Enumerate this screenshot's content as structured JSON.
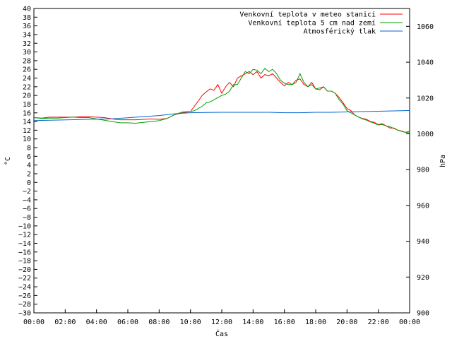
{
  "chart_data": {
    "type": "line",
    "xlabel": "Čas",
    "ylabel": "°C",
    "y2label": "hPa",
    "xlim": [
      0,
      24
    ],
    "ylim": [
      -30,
      40
    ],
    "y2lim": [
      900,
      1070
    ],
    "xticks": [
      "00:00",
      "02:00",
      "04:00",
      "06:00",
      "08:00",
      "10:00",
      "12:00",
      "14:00",
      "16:00",
      "18:00",
      "20:00",
      "22:00",
      "00:00"
    ],
    "y2ticks": [
      900,
      920,
      940,
      960,
      980,
      1000,
      1020,
      1040,
      1060
    ],
    "grid": false,
    "legend_position": "top-right",
    "series": [
      {
        "name": "Venkovní teplota v meteo stanici",
        "color": "#ff0000",
        "axis": "left",
        "x": [
          0,
          0.5,
          1,
          1.5,
          2,
          2.5,
          3,
          3.5,
          4,
          4.5,
          5,
          5.5,
          6,
          6.5,
          7,
          7.5,
          8,
          8.5,
          9,
          9.5,
          10,
          10.25,
          10.5,
          10.75,
          11,
          11.25,
          11.5,
          11.75,
          12,
          12.25,
          12.5,
          12.75,
          13,
          13.25,
          13.5,
          13.75,
          14,
          14.25,
          14.5,
          14.75,
          15,
          15.25,
          15.5,
          15.75,
          16,
          16.25,
          16.5,
          16.75,
          17,
          17.25,
          17.5,
          17.75,
          18,
          18.25,
          18.5,
          18.75,
          19,
          19.25,
          19.5,
          19.75,
          20,
          20.25,
          20.5,
          20.75,
          21,
          21.25,
          21.5,
          21.75,
          22,
          22.25,
          22.5,
          22.75,
          23,
          23.25,
          23.5,
          23.75,
          24
        ],
        "y": [
          14.9,
          14.8,
          15.0,
          15.0,
          15.0,
          15.0,
          15.1,
          15.1,
          15.0,
          14.9,
          14.6,
          14.4,
          14.4,
          14.4,
          14.5,
          14.6,
          14.5,
          14.7,
          15.6,
          16.0,
          16.3,
          17.5,
          18.7,
          20.0,
          20.8,
          21.5,
          21.2,
          22.5,
          20.5,
          22.0,
          23.0,
          22.0,
          24.0,
          24.5,
          25.0,
          25.5,
          24.8,
          25.5,
          24.0,
          24.8,
          24.5,
          25.0,
          24.0,
          23.0,
          22.2,
          23.0,
          22.5,
          23.5,
          23.8,
          22.5,
          22.0,
          23.0,
          21.5,
          21.3,
          22.0,
          21.0,
          21.0,
          20.5,
          19.5,
          18.3,
          17.0,
          16.5,
          15.5,
          15.0,
          14.7,
          14.5,
          14.0,
          13.8,
          13.3,
          13.5,
          13.0,
          12.5,
          12.5,
          12.0,
          11.8,
          11.5,
          11.8
        ]
      },
      {
        "name": "Venkovní teplota 5 cm nad zemí",
        "color": "#00a000",
        "axis": "left",
        "x": [
          0,
          0.5,
          1,
          1.5,
          2,
          2.5,
          3,
          3.5,
          4,
          4.5,
          5,
          5.5,
          6,
          6.5,
          7,
          7.5,
          8,
          8.5,
          9,
          9.5,
          10,
          10.25,
          10.5,
          10.75,
          11,
          11.25,
          11.5,
          11.75,
          12,
          12.25,
          12.5,
          12.75,
          13,
          13.25,
          13.5,
          13.75,
          14,
          14.25,
          14.5,
          14.75,
          15,
          15.25,
          15.5,
          15.75,
          16,
          16.25,
          16.5,
          16.75,
          17,
          17.25,
          17.5,
          17.75,
          18,
          18.25,
          18.5,
          18.75,
          19,
          19.25,
          19.5,
          19.75,
          20,
          20.25,
          20.5,
          20.75,
          21,
          21.25,
          21.5,
          21.75,
          22,
          22.25,
          22.5,
          22.75,
          23,
          23.25,
          23.5,
          23.75,
          24
        ],
        "y": [
          14.9,
          14.7,
          14.8,
          14.8,
          14.9,
          15.0,
          14.9,
          14.9,
          14.6,
          14.3,
          14.0,
          13.7,
          13.7,
          13.6,
          13.8,
          14.0,
          14.2,
          14.7,
          15.6,
          16.2,
          16.3,
          16.5,
          17.0,
          17.5,
          18.3,
          18.5,
          19.0,
          19.5,
          20.0,
          20.3,
          21.0,
          22.5,
          22.5,
          24.0,
          25.5,
          25.0,
          26.0,
          25.8,
          25.0,
          26.2,
          25.5,
          26.0,
          25.0,
          23.5,
          22.8,
          22.5,
          22.5,
          23.0,
          25.0,
          23.0,
          22.0,
          22.5,
          21.5,
          21.7,
          22.0,
          21.0,
          21.0,
          20.5,
          19.0,
          18.0,
          16.5,
          16.0,
          15.5,
          15.0,
          14.6,
          14.3,
          13.9,
          13.6,
          13.2,
          13.3,
          13.0,
          12.8,
          12.4,
          12.0,
          11.7,
          11.5,
          11.4
        ]
      },
      {
        "name": "Atmosférický tlak",
        "color": "#0066cc",
        "axis": "right",
        "x": [
          0,
          1,
          2,
          3,
          4,
          5,
          6,
          7,
          8,
          9,
          10,
          11,
          12,
          13,
          14,
          15,
          16,
          17,
          18,
          19,
          20,
          21,
          22,
          23,
          24
        ],
        "y": [
          1007.4,
          1007.6,
          1007.8,
          1008.0,
          1008.2,
          1008.4,
          1009.0,
          1009.6,
          1010.2,
          1011.2,
          1011.8,
          1011.9,
          1012.0,
          1012.0,
          1012.0,
          1012.0,
          1011.8,
          1011.8,
          1012.0,
          1012.0,
          1012.2,
          1012.4,
          1012.6,
          1012.8,
          1013.0
        ]
      }
    ]
  }
}
